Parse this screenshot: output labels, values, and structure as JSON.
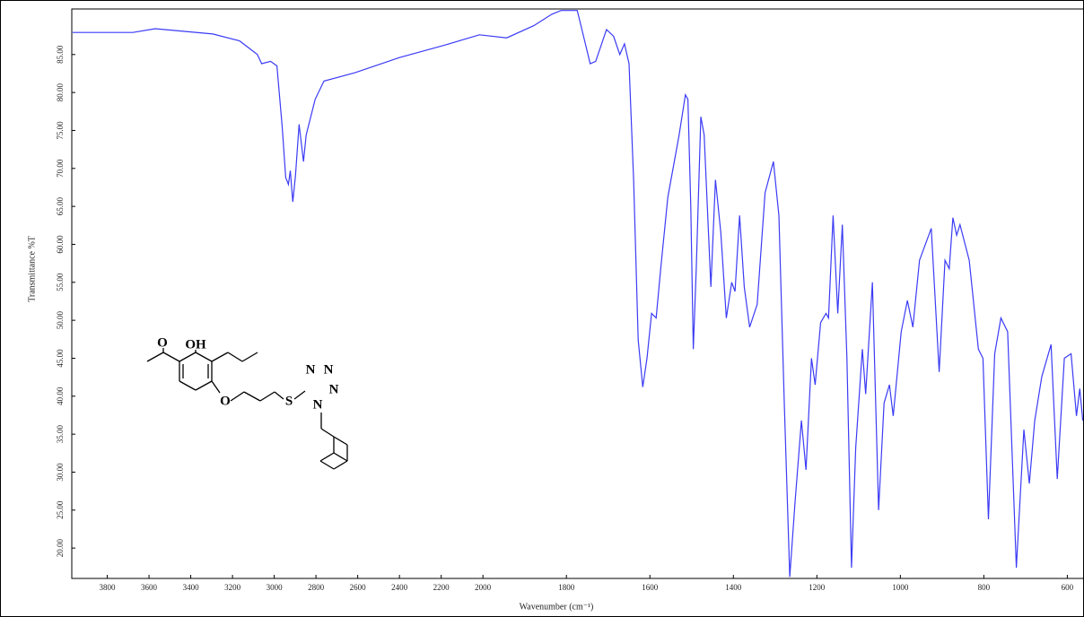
{
  "chart_data": {
    "type": "line",
    "y_label": "Transmittance %T",
    "x_label": "Wavenumber (cm⁻¹)",
    "x_axis_break": 2000,
    "color": "#3b3bf5",
    "xlim": [
      3970,
      560
    ],
    "ylim": [
      16,
      91
    ],
    "xticks": [
      3800,
      3600,
      3400,
      3200,
      3000,
      2800,
      2600,
      2400,
      2200,
      2000,
      1800,
      1600,
      1400,
      1200,
      1000,
      800,
      600
    ],
    "yticks": [
      {
        "value": 20,
        "label": "20.00"
      },
      {
        "value": 25,
        "label": "25.00"
      },
      {
        "value": 30,
        "label": "30.00"
      },
      {
        "value": 35,
        "label": "35.00"
      },
      {
        "value": 40,
        "label": "40.00"
      },
      {
        "value": 45,
        "label": "45.00"
      },
      {
        "value": 50,
        "label": "50.00"
      },
      {
        "value": 55,
        "label": "55.00"
      },
      {
        "value": 60,
        "label": "60.00"
      },
      {
        "value": 65,
        "label": "65.00"
      },
      {
        "value": 70,
        "label": "70.00"
      },
      {
        "value": 75,
        "label": "75.00"
      },
      {
        "value": 80,
        "label": "80.00"
      },
      {
        "value": 85,
        "label": "85.00"
      }
    ],
    "x": [
      3966,
      3677,
      3570,
      3294,
      3166,
      3081,
      3060,
      3017,
      2987,
      2962,
      2945,
      2932,
      2923,
      2911,
      2898,
      2881,
      2860,
      2847,
      2804,
      2762,
      2613,
      2400,
      2187,
      2017,
      1943,
      1878,
      1835,
      1813,
      1774,
      1759,
      1743,
      1730,
      1704,
      1687,
      1672,
      1661,
      1650,
      1639,
      1628,
      1617,
      1607,
      1596,
      1585,
      1574,
      1557,
      1530,
      1515,
      1509,
      1502,
      1496,
      1489,
      1478,
      1470,
      1454,
      1443,
      1430,
      1417,
      1404,
      1396,
      1385,
      1374,
      1361,
      1343,
      1324,
      1304,
      1291,
      1278,
      1265,
      1252,
      1237,
      1226,
      1213,
      1204,
      1191,
      1178,
      1172,
      1161,
      1150,
      1139,
      1128,
      1117,
      1107,
      1091,
      1083,
      1067,
      1052,
      1039,
      1026,
      1017,
      998,
      983,
      970,
      954,
      926,
      907,
      893,
      883,
      874,
      865,
      857,
      835,
      813,
      802,
      789,
      774,
      759,
      743,
      722,
      704,
      691,
      678,
      661,
      639,
      624,
      607,
      591,
      578,
      570,
      563
    ],
    "values": [
      87.9,
      87.9,
      88.4,
      87.7,
      86.8,
      85.0,
      83.8,
      84.1,
      83.5,
      75.6,
      68.8,
      67.9,
      69.7,
      65.6,
      69.1,
      75.8,
      70.9,
      74.4,
      79.1,
      81.5,
      82.6,
      84.6,
      86.2,
      87.6,
      87.2,
      88.8,
      90.3,
      90.8,
      90.8,
      87.4,
      83.8,
      84.1,
      88.3,
      87.4,
      85.0,
      86.4,
      83.8,
      68.5,
      47.4,
      41.2,
      45.0,
      50.9,
      50.3,
      56.8,
      66.2,
      74.4,
      79.7,
      79.1,
      65.0,
      46.2,
      56.8,
      76.8,
      74.4,
      54.4,
      68.5,
      61.5,
      50.3,
      55.0,
      53.8,
      63.8,
      54.4,
      49.1,
      52.1,
      66.8,
      70.9,
      63.8,
      39.1,
      16.2,
      26.2,
      36.8,
      30.3,
      45.0,
      41.5,
      49.7,
      50.9,
      50.3,
      63.8,
      50.9,
      62.6,
      45.0,
      17.4,
      33.2,
      46.2,
      40.3,
      55.0,
      25.0,
      39.1,
      41.5,
      37.4,
      48.5,
      52.6,
      49.1,
      57.9,
      62.1,
      43.2,
      57.9,
      56.8,
      63.5,
      61.2,
      62.6,
      57.9,
      46.2,
      45.0,
      23.8,
      45.6,
      50.3,
      48.5,
      17.4,
      35.6,
      28.5,
      36.8,
      42.6,
      46.8,
      29.1,
      45.0,
      45.6,
      37.4,
      41.0,
      36.8
    ]
  },
  "structure_labels": [
    "O",
    "OH",
    "O",
    "S",
    "N",
    "N",
    "N",
    "N"
  ]
}
